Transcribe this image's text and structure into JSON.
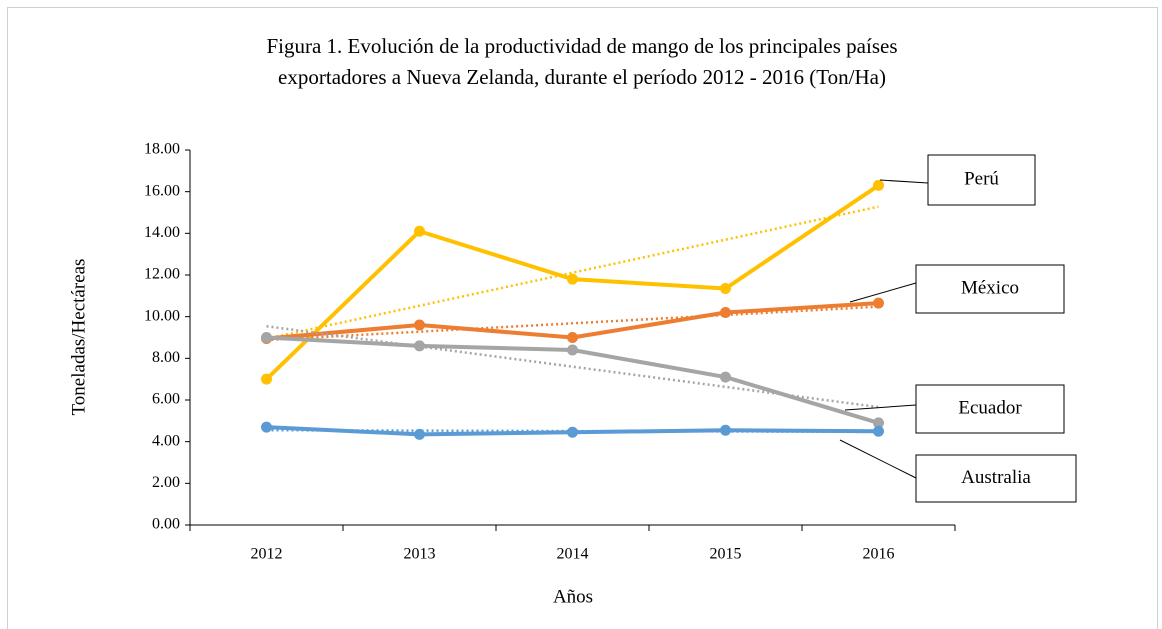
{
  "chart_data": {
    "type": "line",
    "title": [
      "Figura 1. Evolución de la productividad de mango de los principales países",
      "exportadores a Nueva Zelanda, durante el período 2012 - 2016 (Ton/Ha)"
    ],
    "x_label": "Años",
    "y_label": "Toneladas/Hectáreas",
    "categories": [
      "2012",
      "2013",
      "2014",
      "2015",
      "2016"
    ],
    "series": [
      {
        "name": "Perú",
        "color": "#ffc000",
        "values": [
          7.0,
          14.1,
          11.8,
          11.35,
          16.3
        ]
      },
      {
        "name": "México",
        "color": "#ed7d31",
        "values": [
          8.95,
          9.6,
          9.0,
          10.2,
          10.65
        ]
      },
      {
        "name": "Ecuador",
        "color": "#a5a5a5",
        "values": [
          9.0,
          8.6,
          8.4,
          7.1,
          4.9
        ]
      },
      {
        "name": "Australia",
        "color": "#5b9bd5",
        "values": [
          4.7,
          4.35,
          4.45,
          4.55,
          4.5
        ]
      }
    ],
    "ylim": [
      0,
      18
    ],
    "yticks": [
      {
        "value": 0,
        "label": "0.00"
      },
      {
        "value": 2,
        "label": "2.00"
      },
      {
        "value": 4,
        "label": "4.00"
      },
      {
        "value": 6,
        "label": "6.00"
      },
      {
        "value": 8,
        "label": "8.00"
      },
      {
        "value": 10,
        "label": "10.00"
      },
      {
        "value": 12,
        "label": "12.00"
      },
      {
        "value": 14,
        "label": "14.00"
      },
      {
        "value": 16,
        "label": "16.00"
      },
      {
        "value": 18,
        "label": "18.00"
      }
    ],
    "trendline": true
  }
}
